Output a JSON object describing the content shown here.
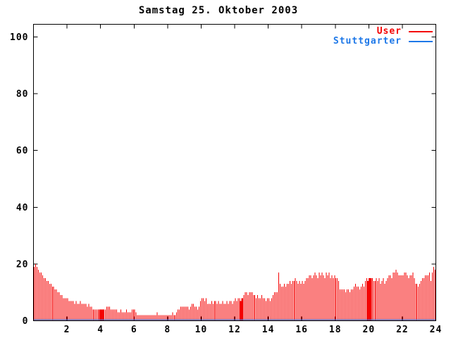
{
  "window": {
    "background": "#ffffff"
  },
  "chart_data": {
    "type": "bar",
    "title": "Samstag 25. Oktober 2003",
    "x_axis": {
      "label": "",
      "min": 0,
      "max": 24,
      "unit": "hour-of-day",
      "samples_per_hour": 12,
      "ticks": [
        2,
        4,
        6,
        8,
        10,
        12,
        14,
        16,
        18,
        20,
        22,
        24
      ]
    },
    "y_axis": {
      "label": "",
      "min": 0,
      "max": 100,
      "ticks": [
        0,
        20,
        40,
        60,
        80,
        100
      ]
    },
    "grid": false,
    "legend": {
      "position": "top-right-inside"
    },
    "colors": {
      "axis": "#000000",
      "background": "#ffffff"
    },
    "series": [
      {
        "name": "User",
        "style": "impulses",
        "color": "#f40000",
        "values": [
          19,
          20,
          19,
          18,
          17,
          17,
          16,
          15,
          15,
          14,
          14,
          13,
          13,
          12,
          12,
          11,
          11,
          10,
          10,
          9,
          9,
          8,
          8,
          8,
          8,
          7,
          7,
          7,
          7,
          6,
          7,
          6,
          6,
          7,
          6,
          6,
          6,
          6,
          5,
          6,
          5,
          5,
          4,
          4,
          4,
          4,
          4,
          4,
          4,
          4,
          4,
          4,
          5,
          5,
          5,
          4,
          4,
          4,
          4,
          4,
          3,
          3,
          4,
          3,
          3,
          3,
          4,
          3,
          3,
          3,
          4,
          4,
          4,
          3,
          2,
          2,
          2,
          2,
          2,
          2,
          2,
          2,
          2,
          2,
          2,
          2,
          2,
          2,
          3,
          2,
          2,
          2,
          2,
          2,
          2,
          2,
          2,
          2,
          2,
          3,
          2,
          2,
          3,
          4,
          4,
          5,
          5,
          5,
          5,
          5,
          5,
          4,
          5,
          6,
          6,
          5,
          5,
          4,
          5,
          7,
          8,
          8,
          7,
          8,
          6,
          6,
          6,
          7,
          6,
          7,
          7,
          6,
          7,
          6,
          6,
          7,
          6,
          6,
          7,
          6,
          7,
          7,
          6,
          7,
          8,
          7,
          8,
          8,
          7,
          8,
          9,
          10,
          10,
          9,
          10,
          10,
          10,
          9,
          9,
          8,
          9,
          8,
          8,
          9,
          8,
          8,
          7,
          8,
          8,
          7,
          8,
          9,
          10,
          10,
          10,
          17,
          13,
          12,
          12,
          13,
          12,
          13,
          13,
          14,
          13,
          14,
          14,
          15,
          14,
          13,
          14,
          13,
          14,
          13,
          14,
          15,
          15,
          16,
          16,
          15,
          16,
          17,
          16,
          15,
          17,
          16,
          17,
          16,
          15,
          17,
          16,
          17,
          15,
          16,
          15,
          16,
          15,
          15,
          14,
          11,
          11,
          11,
          11,
          10,
          11,
          11,
          10,
          11,
          11,
          12,
          13,
          12,
          12,
          11,
          12,
          13,
          12,
          14,
          15,
          14,
          15,
          15,
          15,
          14,
          14,
          15,
          14,
          15,
          13,
          14,
          15,
          13,
          14,
          15,
          16,
          16,
          15,
          17,
          17,
          18,
          17,
          16,
          16,
          16,
          16,
          17,
          17,
          16,
          15,
          16,
          16,
          17,
          15,
          13,
          13,
          12,
          13,
          14,
          15,
          15,
          16,
          16,
          16,
          17,
          14,
          17,
          19,
          18
        ]
      },
      {
        "name": "Stuttgarter",
        "style": "line",
        "color": "#1e78e8",
        "constant_value": 0
      }
    ],
    "wide_bar_indices": [
      47,
      48,
      49,
      148,
      149,
      239,
      240,
      241
    ]
  }
}
